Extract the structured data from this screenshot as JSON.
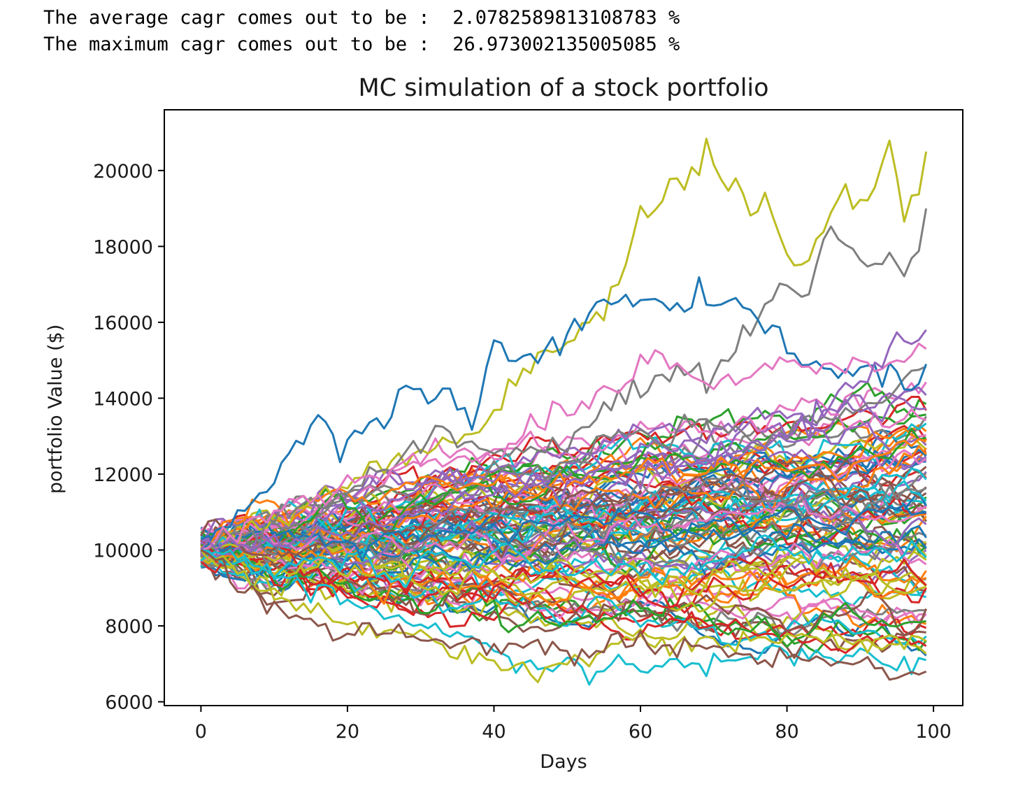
{
  "console": {
    "average_line": "The average cagr comes out to be :  2.0782589813108783 %",
    "maximum_line": "The maximum cagr comes out to be :  26.973002135005085 %"
  },
  "chart_data": {
    "type": "line",
    "title": "MC simulation of a stock portfolio",
    "xlabel": "Days",
    "ylabel": "portfolio Value ($)",
    "xlim": [
      -5,
      104
    ],
    "ylim": [
      5900,
      21600
    ],
    "xticks": [
      0,
      20,
      40,
      60,
      80,
      100
    ],
    "yticks": [
      6000,
      8000,
      10000,
      12000,
      14000,
      16000,
      18000,
      20000
    ],
    "grid": false,
    "legend": "none",
    "n_days": 100,
    "start_value": 10000,
    "series_count": 100,
    "palette": [
      "#1f77b4",
      "#ff7f0e",
      "#2ca02c",
      "#d62728",
      "#9467bd",
      "#8c564b",
      "#e377c2",
      "#7f7f7f",
      "#bcbd22",
      "#17becf"
    ],
    "highlighted_series": [
      {
        "color": "#bcbd22",
        "x": [
          0,
          10,
          20,
          30,
          38,
          42,
          46,
          50,
          55,
          58,
          60,
          62,
          64,
          66,
          68,
          69,
          71,
          73,
          75,
          77,
          79,
          81,
          83,
          85,
          88,
          90,
          92,
          94,
          96,
          98,
          99
        ],
        "y": [
          10000,
          10700,
          11800,
          12600,
          13000,
          14300,
          15000,
          15600,
          16300,
          17500,
          18800,
          19000,
          19700,
          19500,
          20000,
          20700,
          19900,
          19800,
          18700,
          19300,
          18300,
          17600,
          17700,
          18700,
          19200,
          19200,
          19700,
          20900,
          19000,
          19500,
          20500
        ]
      },
      {
        "color": "#7f7f7f",
        "x": [
          0,
          20,
          33,
          40,
          50,
          55,
          60,
          65,
          70,
          73,
          76,
          78,
          80,
          83,
          85,
          87,
          90,
          92,
          94,
          96,
          98,
          99
        ],
        "y": [
          10000,
          11500,
          13000,
          12500,
          12800,
          13800,
          14300,
          14800,
          14600,
          15300,
          16100,
          16500,
          16900,
          16700,
          18200,
          18400,
          17700,
          17400,
          17800,
          17300,
          17800,
          19000
        ]
      },
      {
        "color": "#1f77b4",
        "x": [
          0,
          5,
          10,
          13,
          16,
          19,
          22,
          25,
          28,
          31,
          34,
          37,
          40,
          43,
          46,
          49,
          52,
          55,
          58,
          61,
          64,
          67,
          68,
          70,
          73,
          76,
          79,
          82,
          85,
          88,
          91,
          94,
          97,
          99
        ],
        "y": [
          10000,
          10900,
          11700,
          12800,
          13500,
          12600,
          13200,
          13500,
          14100,
          13700,
          14200,
          13200,
          15400,
          15000,
          15200,
          15600,
          16000,
          16700,
          16500,
          16600,
          16300,
          16500,
          17100,
          16300,
          16700,
          16200,
          15600,
          15000,
          14700,
          14800,
          14900,
          14600,
          14100,
          14900
        ]
      },
      {
        "color": "#e377c2",
        "x": [
          0,
          10,
          20,
          30,
          40,
          45,
          50,
          55,
          58,
          60,
          62,
          64,
          67,
          70,
          75,
          80,
          85,
          90,
          95,
          99
        ],
        "y": [
          10000,
          11000,
          11800,
          12300,
          12500,
          13300,
          13700,
          14200,
          14700,
          14800,
          15300,
          14800,
          14900,
          14500,
          14600,
          15000,
          14800,
          15100,
          14900,
          15300
        ]
      },
      {
        "color": "#9467bd",
        "x": [
          0,
          20,
          40,
          60,
          80,
          88,
          92,
          95,
          97,
          99
        ],
        "y": [
          10000,
          10500,
          11500,
          12000,
          13000,
          14200,
          14700,
          15600,
          15600,
          15800
        ]
      },
      {
        "color": "#17becf",
        "x": [
          0,
          10,
          20,
          30,
          40,
          45,
          50,
          53,
          56,
          60,
          65,
          70,
          75,
          80,
          85,
          90,
          95,
          99
        ],
        "y": [
          10000,
          9300,
          8600,
          8100,
          7500,
          7000,
          7000,
          6650,
          7000,
          6900,
          6900,
          7100,
          7200,
          7400,
          7100,
          7300,
          7000,
          7100
        ]
      },
      {
        "color": "#bcbd22",
        "x": [
          0,
          10,
          20,
          30,
          35,
          40,
          43,
          45,
          47,
          50,
          55,
          60
        ],
        "y": [
          10000,
          8900,
          8000,
          7700,
          7400,
          7100,
          6900,
          6700,
          6700,
          7100,
          7400,
          7600
        ]
      },
      {
        "color": "#8c564b",
        "x": [
          0,
          5,
          10,
          15,
          20,
          25,
          30,
          40,
          50,
          60,
          70,
          80,
          90,
          95,
          99
        ],
        "y": [
          10000,
          9100,
          8400,
          8100,
          7800,
          7900,
          7700,
          7500,
          7400,
          7500,
          7300,
          7200,
          7000,
          6700,
          6800
        ]
      }
    ],
    "bulk_band": {
      "x": [
        0,
        20,
        40,
        60,
        80,
        99
      ],
      "low": [
        9400,
        8600,
        8200,
        8000,
        7800,
        7400
      ],
      "high": [
        10600,
        11700,
        12600,
        13200,
        13800,
        14500
      ]
    }
  }
}
